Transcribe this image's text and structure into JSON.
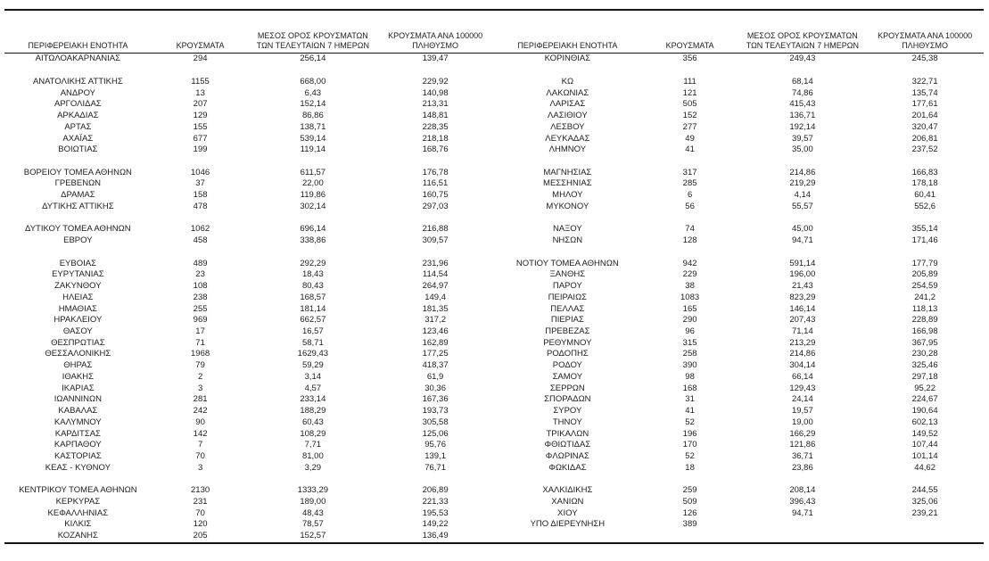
{
  "colors": {
    "background": "#ffffff",
    "text": "#1d1d1d",
    "rule_line": "#151515"
  },
  "table": {
    "columns": [
      "ΠΕΡΙΦΕΡΕΙΑΚΗ ΕΝΟΤΗΤΑ",
      "ΚΡΟΥΣΜΑΤΑ",
      "ΜΕΣΟΣ ΟΡΟΣ ΚΡΟΥΣΜΑΤΩΝ ΤΩΝ ΤΕΛΕΥΤΑΙΩΝ 7 ΗΜΕΡΩΝ",
      "ΚΡΟΥΣΜΑΤΑ ΑΝΑ 100000 ΠΛΗΘΥΣΜΟ"
    ],
    "left_rows": [
      [
        "ΑΙΤΩΛΟΑΚΑΡΝΑΝΙΑΣ",
        "294",
        "256,14",
        "139,47"
      ],
      null,
      [
        "ΑΝΑΤΟΛΙΚΗΣ ΑΤΤΙΚΗΣ",
        "1155",
        "668,00",
        "229,92"
      ],
      [
        "ΑΝΔΡΟΥ",
        "13",
        "6,43",
        "140,98"
      ],
      [
        "ΑΡΓΟΛΙΔΑΣ",
        "207",
        "152,14",
        "213,31"
      ],
      [
        "ΑΡΚΑΔΙΑΣ",
        "129",
        "86,86",
        "148,81"
      ],
      [
        "ΑΡΤΑΣ",
        "155",
        "138,71",
        "228,35"
      ],
      [
        "ΑΧΑΪΑΣ",
        "677",
        "539,14",
        "218,18"
      ],
      [
        "ΒΟΙΩΤΙΑΣ",
        "199",
        "119,14",
        "168,76"
      ],
      null,
      [
        "ΒΟΡΕΙΟΥ ΤΟΜΕΑ ΑΘΗΝΩΝ",
        "1046",
        "611,57",
        "176,78"
      ],
      [
        "ΓΡΕΒΕΝΩΝ",
        "37",
        "22,00",
        "116,51"
      ],
      [
        "ΔΡΑΜΑΣ",
        "158",
        "119,86",
        "160,75"
      ],
      [
        "ΔΥΤΙΚΗΣ ΑΤΤΙΚΗΣ",
        "478",
        "302,14",
        "297,03"
      ],
      null,
      [
        "ΔΥΤΙΚΟΥ ΤΟΜΕΑ ΑΘΗΝΩΝ",
        "1062",
        "696,14",
        "216,88"
      ],
      [
        "ΕΒΡΟΥ",
        "458",
        "338,86",
        "309,57"
      ],
      null,
      [
        "ΕΥΒΟΙΑΣ",
        "489",
        "292,29",
        "231,96"
      ],
      [
        "ΕΥΡΥΤΑΝΙΑΣ",
        "23",
        "18,43",
        "114,54"
      ],
      [
        "ΖΑΚΥΝΘΟΥ",
        "108",
        "80,43",
        "264,97"
      ],
      [
        "ΗΛΕΙΑΣ",
        "238",
        "168,57",
        "149,4"
      ],
      [
        "ΗΜΑΘΙΑΣ",
        "255",
        "181,14",
        "181,35"
      ],
      [
        "ΗΡΑΚΛΕΙΟΥ",
        "969",
        "662,57",
        "317,2"
      ],
      [
        "ΘΑΣΟΥ",
        "17",
        "16,57",
        "123,46"
      ],
      [
        "ΘΕΣΠΡΩΤΙΑΣ",
        "71",
        "58,71",
        "162,89"
      ],
      [
        "ΘΕΣΣΑΛΟΝΙΚΗΣ",
        "1968",
        "1629,43",
        "177,25"
      ],
      [
        "ΘΗΡΑΣ",
        "79",
        "59,29",
        "418,37"
      ],
      [
        "ΙΘΑΚΗΣ",
        "2",
        "3,14",
        "61,9"
      ],
      [
        "ΙΚΑΡΙΑΣ",
        "3",
        "4,57",
        "30,36"
      ],
      [
        "ΙΩΑΝΝΙΝΩΝ",
        "281",
        "233,14",
        "167,36"
      ],
      [
        "ΚΑΒΑΛΑΣ",
        "242",
        "188,29",
        "193,73"
      ],
      [
        "ΚΑΛΥΜΝΟΥ",
        "90",
        "60,43",
        "305,58"
      ],
      [
        "ΚΑΡΔΙΤΣΑΣ",
        "142",
        "108,29",
        "125,06"
      ],
      [
        "ΚΑΡΠΑΘΟΥ",
        "7",
        "7,71",
        "95,76"
      ],
      [
        "ΚΑΣΤΟΡΙΑΣ",
        "70",
        "81,00",
        "139,1"
      ],
      [
        "ΚΕΑΣ - ΚΥΘΝΟΥ",
        "3",
        "3,29",
        "76,71"
      ],
      null,
      [
        "ΚΕΝΤΡΙΚΟΥ ΤΟΜΕΑ ΑΘΗΝΩΝ",
        "2130",
        "1333,29",
        "206,89"
      ],
      [
        "ΚΕΡΚΥΡΑΣ",
        "231",
        "189,00",
        "221,33"
      ],
      [
        "ΚΕΦΑΛΛΗΝΙΑΣ",
        "70",
        "48,43",
        "195,53"
      ],
      [
        "ΚΙΛΚΙΣ",
        "120",
        "78,57",
        "149,22"
      ],
      [
        "ΚΟΖΑΝΗΣ",
        "205",
        "152,57",
        "136,49"
      ]
    ],
    "right_rows": [
      [
        "ΚΟΡΙΝΘΙΑΣ",
        "356",
        "249,43",
        "245,38"
      ],
      null,
      [
        "ΚΩ",
        "111",
        "68,14",
        "322,71"
      ],
      [
        "ΛΑΚΩΝΙΑΣ",
        "121",
        "74,86",
        "135,74"
      ],
      [
        "ΛΑΡΙΣΑΣ",
        "505",
        "415,43",
        "177,61"
      ],
      [
        "ΛΑΣΙΘΙΟΥ",
        "152",
        "136,71",
        "201,64"
      ],
      [
        "ΛΕΣΒΟΥ",
        "277",
        "192,14",
        "320,47"
      ],
      [
        "ΛΕΥΚΑΔΑΣ",
        "49",
        "39,57",
        "206,81"
      ],
      [
        "ΛΗΜΝΟΥ",
        "41",
        "35,00",
        "237,52"
      ],
      null,
      [
        "ΜΑΓΝΗΣΙΑΣ",
        "317",
        "214,86",
        "166,83"
      ],
      [
        "ΜΕΣΣΗΝΙΑΣ",
        "285",
        "219,29",
        "178,18"
      ],
      [
        "ΜΗΛΟΥ",
        "6",
        "4,14",
        "60,41"
      ],
      [
        "ΜΥΚΟΝΟΥ",
        "56",
        "55,57",
        "552,6"
      ],
      null,
      [
        "ΝΑΞΟΥ",
        "74",
        "45,00",
        "355,14"
      ],
      [
        "ΝΗΣΩΝ",
        "128",
        "94,71",
        "171,46"
      ],
      null,
      [
        "ΝΟΤΙΟΥ ΤΟΜΕΑ ΑΘΗΝΩΝ",
        "942",
        "591,14",
        "177,79"
      ],
      [
        "ΞΑΝΘΗΣ",
        "229",
        "196,00",
        "205,89"
      ],
      [
        "ΠΑΡΟΥ",
        "38",
        "21,43",
        "254,59"
      ],
      [
        "ΠΕΙΡΑΙΩΣ",
        "1083",
        "823,29",
        "241,2"
      ],
      [
        "ΠΕΛΛΑΣ",
        "165",
        "146,14",
        "118,13"
      ],
      [
        "ΠΙΕΡΙΑΣ",
        "290",
        "207,43",
        "228,89"
      ],
      [
        "ΠΡΕΒΕΖΑΣ",
        "96",
        "71,14",
        "166,98"
      ],
      [
        "ΡΕΘΥΜΝΟΥ",
        "315",
        "213,29",
        "367,95"
      ],
      [
        "ΡΟΔΟΠΗΣ",
        "258",
        "214,86",
        "230,28"
      ],
      [
        "ΡΟΔΟΥ",
        "390",
        "304,14",
        "325,46"
      ],
      [
        "ΣΑΜΟΥ",
        "98",
        "66,14",
        "297,18"
      ],
      [
        "ΣΕΡΡΩΝ",
        "168",
        "129,43",
        "95,22"
      ],
      [
        "ΣΠΟΡΑΔΩΝ",
        "31",
        "24,14",
        "224,67"
      ],
      [
        "ΣΥΡΟΥ",
        "41",
        "19,57",
        "190,64"
      ],
      [
        "ΤΗΝΟΥ",
        "52",
        "19,00",
        "602,13"
      ],
      [
        "ΤΡΙΚΑΛΩΝ",
        "196",
        "166,29",
        "149,52"
      ],
      [
        "ΦΘΙΩΤΙΔΑΣ",
        "170",
        "121,86",
        "107,44"
      ],
      [
        "ΦΛΩΡΙΝΑΣ",
        "52",
        "36,71",
        "101,14"
      ],
      [
        "ΦΩΚΙΔΑΣ",
        "18",
        "23,86",
        "44,62"
      ],
      null,
      [
        "ΧΑΛΚΙΔΙΚΗΣ",
        "259",
        "208,14",
        "244,55"
      ],
      [
        "ΧΑΝΙΩΝ",
        "509",
        "396,43",
        "325,06"
      ],
      [
        "ΧΙΟΥ",
        "126",
        "94,71",
        "239,21"
      ],
      [
        "ΥΠΟ ΔΙΕΡΕΥΝΗΣΗ",
        "389",
        "",
        ""
      ],
      null
    ]
  }
}
